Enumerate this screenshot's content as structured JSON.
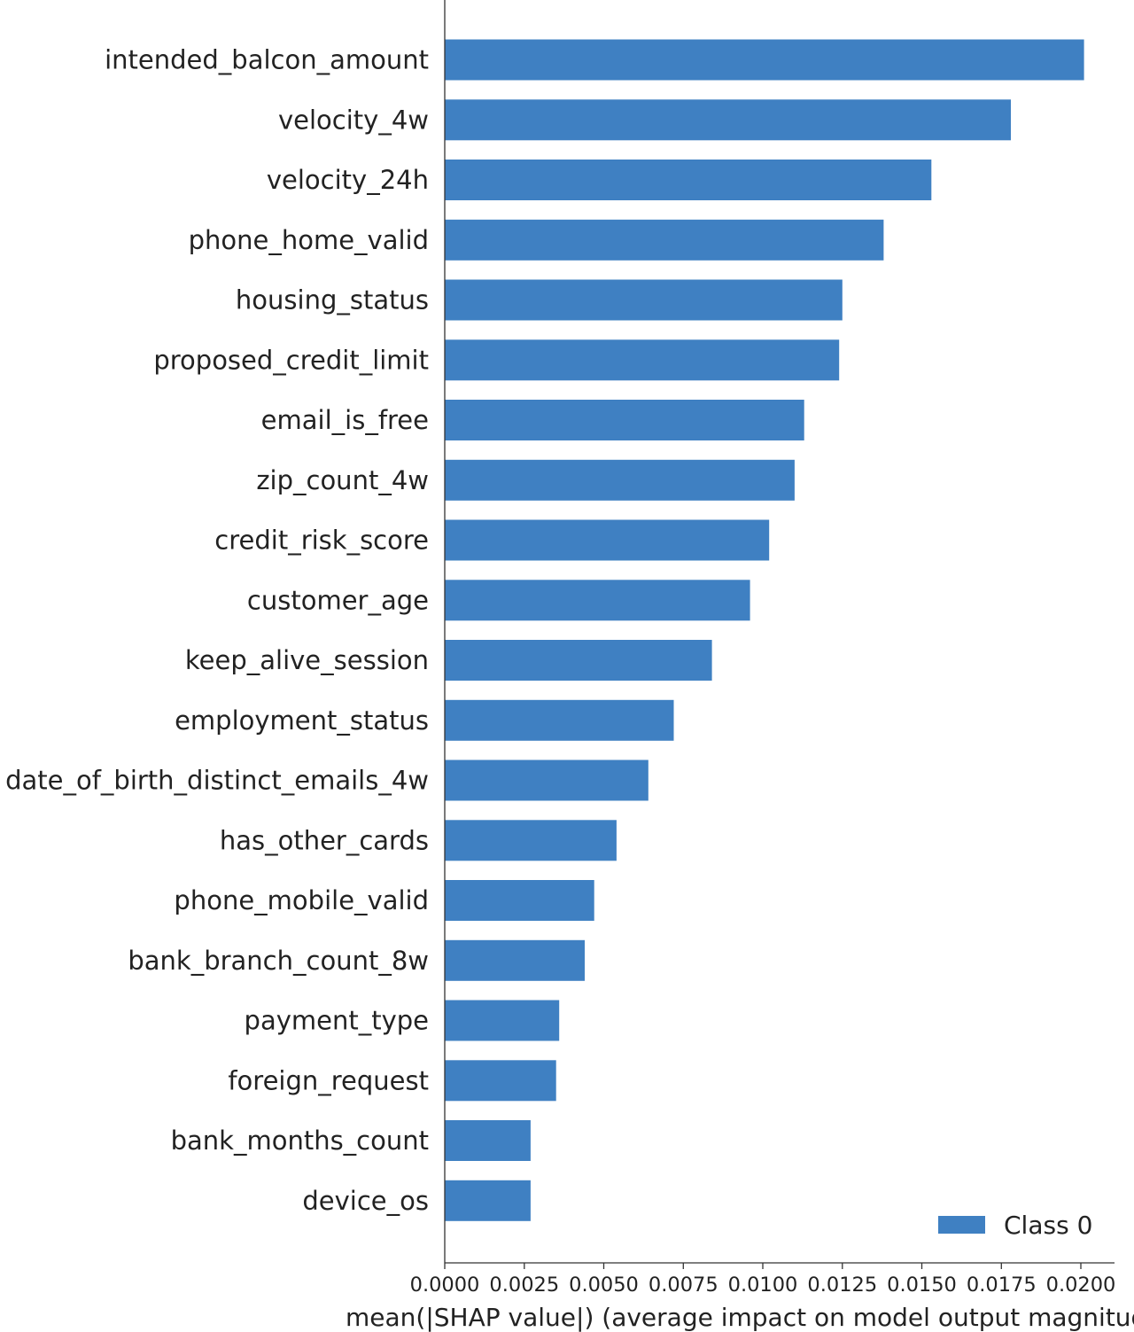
{
  "chart_data": {
    "type": "bar",
    "orientation": "horizontal",
    "categories": [
      "intended_balcon_amount",
      "velocity_4w",
      "velocity_24h",
      "phone_home_valid",
      "housing_status",
      "proposed_credit_limit",
      "email_is_free",
      "zip_count_4w",
      "credit_risk_score",
      "customer_age",
      "keep_alive_session",
      "employment_status",
      "date_of_birth_distinct_emails_4w",
      "has_other_cards",
      "phone_mobile_valid",
      "bank_branch_count_8w",
      "payment_type",
      "foreign_request",
      "bank_months_count",
      "device_os"
    ],
    "series": [
      {
        "name": "Class 0",
        "color": "#3f80c2",
        "values": [
          0.0201,
          0.0178,
          0.0153,
          0.0138,
          0.0125,
          0.0124,
          0.0113,
          0.011,
          0.0102,
          0.0096,
          0.0084,
          0.0072,
          0.0064,
          0.0054,
          0.0047,
          0.0044,
          0.0036,
          0.0035,
          0.0027,
          0.0027
        ]
      }
    ],
    "xticks": [
      "0.0000",
      "0.0025",
      "0.0050",
      "0.0075",
      "0.0100",
      "0.0125",
      "0.0150",
      "0.0175",
      "0.0200"
    ],
    "xlabel": "mean(|SHAP value|) (average impact on model output magnitude)",
    "ylabel": "",
    "xlim": [
      0,
      0.0212
    ],
    "legend_position": "bottom-right",
    "grid": false
  }
}
